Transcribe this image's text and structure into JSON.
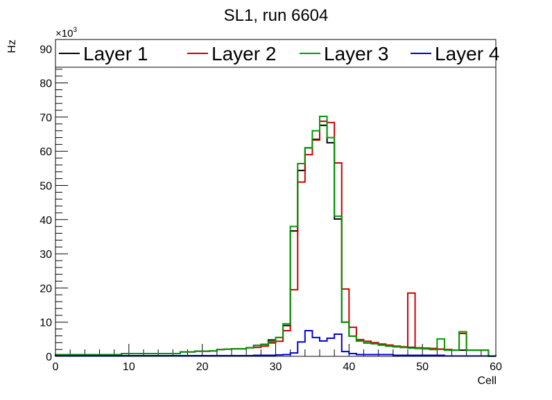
{
  "chart_data": {
    "type": "histogram-step",
    "title": "SL1, run 6604",
    "xlabel": "Cell",
    "ylabel": "Hz",
    "y_multiplier_label": "×10",
    "y_multiplier_exp": "3",
    "xlim": [
      0,
      60
    ],
    "ylim": [
      0,
      92.7
    ],
    "x_ticks": [
      0,
      10,
      20,
      30,
      40,
      50,
      60
    ],
    "y_ticks": [
      0,
      10,
      20,
      30,
      40,
      50,
      60,
      70,
      80,
      90
    ],
    "bin_width": 1,
    "legend_position": "top, full width",
    "series": [
      {
        "name": "Layer 1",
        "color": "#000000",
        "values": [
          0.5,
          0.5,
          0.5,
          0.5,
          0.5,
          0.5,
          0.5,
          0.5,
          0.5,
          0.8,
          0.8,
          0.8,
          0.8,
          0.8,
          0.8,
          0.8,
          0.8,
          1.3,
          1.3,
          1.5,
          1.5,
          1.6,
          2.0,
          2.1,
          2.2,
          2.2,
          2.5,
          3.2,
          3.5,
          4.8,
          5.5,
          9.0,
          36.7,
          54.4,
          61,
          63.5,
          67.6,
          62.5,
          40.2,
          10,
          5.9,
          4.5,
          3.9,
          3.7,
          3.3,
          3.0,
          2.8,
          2.6,
          2.6,
          2.3,
          2.2,
          2.0,
          2.1,
          1.8,
          1.8,
          1.8,
          1.8,
          1.8,
          1.8,
          0
        ]
      },
      {
        "name": "Layer 2",
        "color": "#cc0000",
        "values": [
          0.5,
          0.5,
          0.5,
          0.5,
          0.5,
          0.5,
          0.5,
          0.5,
          0.5,
          0.8,
          0.8,
          0.8,
          0.8,
          0.8,
          0.8,
          0.8,
          0.8,
          1.3,
          1.3,
          1.5,
          1.5,
          1.6,
          2.0,
          2.1,
          2.2,
          2.2,
          2.5,
          2.6,
          3.0,
          3.9,
          4.4,
          7.5,
          19.5,
          51,
          59,
          63.3,
          68.8,
          68.4,
          56.6,
          19.7,
          8.5,
          4.9,
          4.4,
          4.0,
          3.6,
          3.3,
          3.0,
          2.8,
          18.5,
          2.5,
          2.4,
          2.3,
          2.1,
          2.0,
          1.8,
          6.7,
          1.8,
          1.8,
          1.8,
          0
        ]
      },
      {
        "name": "Layer 3",
        "color": "#009900",
        "values": [
          0.5,
          0.5,
          0.5,
          0.5,
          0.5,
          0.5,
          0.5,
          0.5,
          0.5,
          0.8,
          0.8,
          0.8,
          0.8,
          0.8,
          0.8,
          0.8,
          0.8,
          1.3,
          1.3,
          1.5,
          1.5,
          1.6,
          2.0,
          2.1,
          2.2,
          2.2,
          2.5,
          3.2,
          3.5,
          4.3,
          5.5,
          9.5,
          38,
          56.4,
          61,
          66,
          70.2,
          64,
          41,
          10,
          5.9,
          4.5,
          3.9,
          3.7,
          3.3,
          3.0,
          2.8,
          2.6,
          2.4,
          2.3,
          2.2,
          2.0,
          5.1,
          1.8,
          1.8,
          7.2,
          1.8,
          1.8,
          1.8,
          0
        ]
      },
      {
        "name": "Layer 4",
        "color": "#0000cc",
        "values": [
          0.2,
          0.2,
          0.2,
          0.2,
          0.2,
          0.2,
          0.2,
          0.2,
          0.2,
          0.2,
          0.2,
          0.2,
          0.2,
          0.2,
          0.2,
          0.2,
          0.2,
          0.2,
          0.2,
          0.2,
          0.2,
          0.2,
          0.2,
          0.2,
          0.2,
          0.2,
          0.2,
          0.3,
          0.3,
          0.3,
          0.4,
          0.5,
          1.0,
          4.2,
          7.5,
          5.5,
          4.5,
          5.3,
          6.5,
          1.4,
          0.8,
          0.5,
          0.5,
          0.5,
          0.5,
          0.5,
          0.3,
          0.3,
          0.3,
          0.3,
          0.3,
          0.3,
          0.3,
          0.1,
          0.1,
          0.1,
          0.1,
          0.1,
          0.1,
          0.1
        ]
      }
    ]
  }
}
